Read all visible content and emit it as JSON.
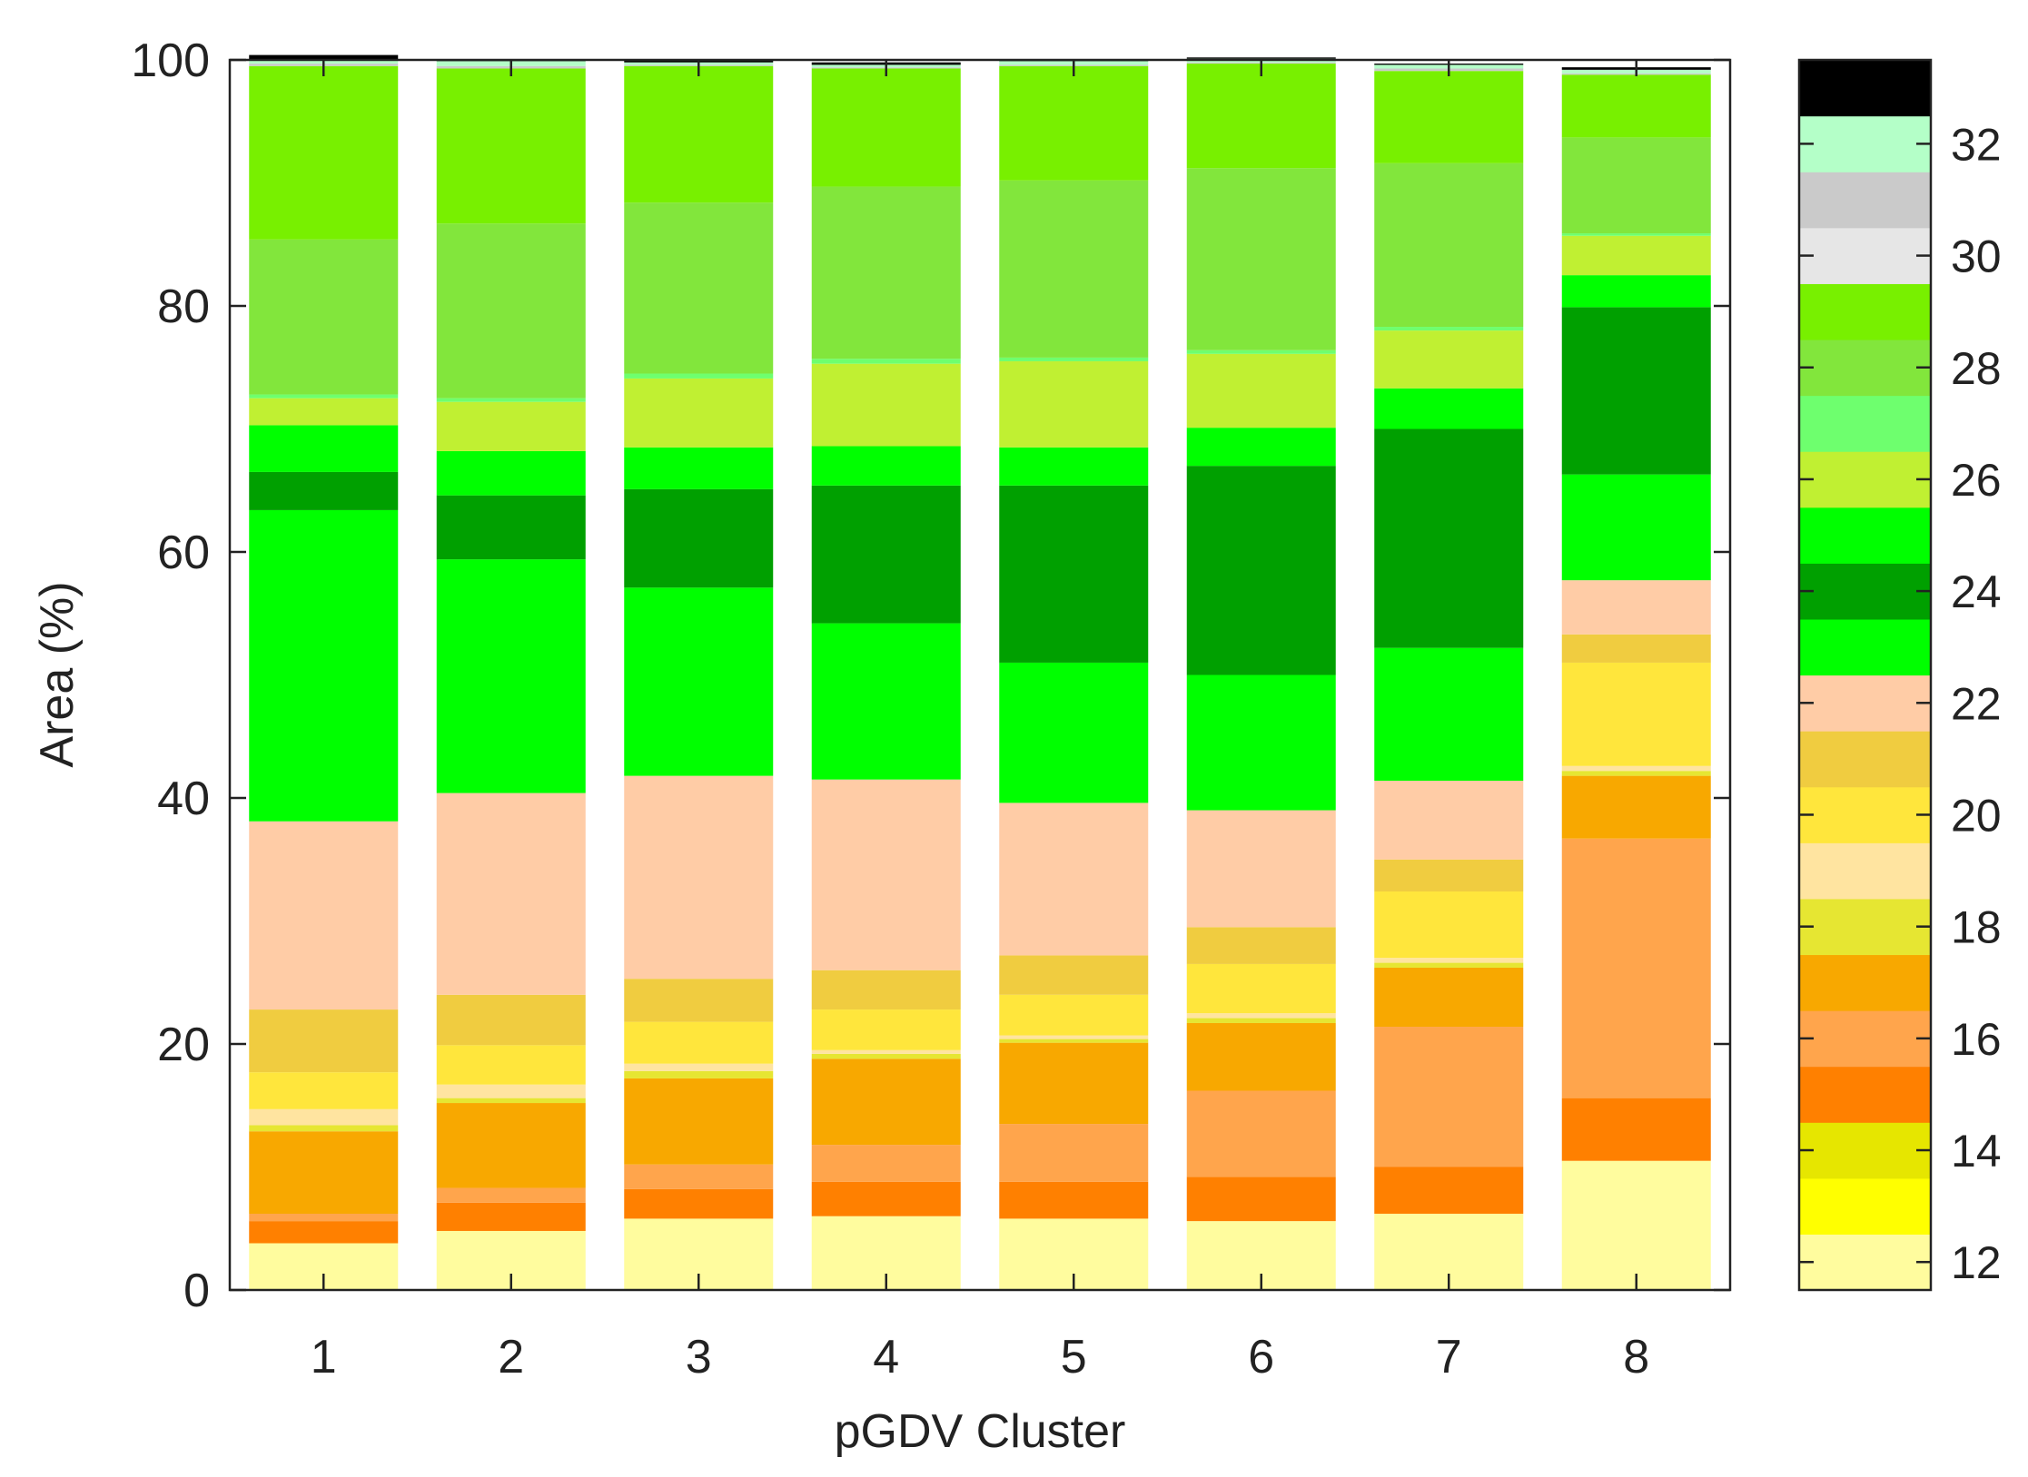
{
  "chart_data": {
    "type": "bar",
    "subtype": "stacked-100",
    "xlabel": "pGDV Cluster",
    "ylabel": "Area (%)",
    "ylim": [
      0,
      100
    ],
    "yticks": [
      0,
      20,
      40,
      60,
      80,
      100
    ],
    "categories": [
      "1",
      "2",
      "3",
      "4",
      "5",
      "6",
      "7",
      "8"
    ],
    "colorbar": {
      "range": [
        11.5,
        33.5
      ],
      "tick_values": [
        12,
        14,
        16,
        18,
        20,
        22,
        24,
        26,
        28,
        30,
        32
      ],
      "tick_labels": [
        "12",
        "14",
        "16",
        "18",
        "20",
        "22",
        "24",
        "26",
        "28",
        "30",
        "32"
      ]
    },
    "series": [
      {
        "name": "12",
        "color": "#fffc9e",
        "values": [
          3.8,
          4.8,
          5.8,
          6.0,
          5.8,
          5.6,
          6.2,
          10.5
        ]
      },
      {
        "name": "13",
        "color": "#ffff00",
        "values": [
          0,
          0,
          0,
          0,
          0,
          0,
          0,
          0
        ]
      },
      {
        "name": "14",
        "color": "#e6e600",
        "values": [
          0,
          0,
          0,
          0,
          0,
          0,
          0,
          0
        ]
      },
      {
        "name": "15",
        "color": "#ff8000",
        "values": [
          1.8,
          2.3,
          2.4,
          2.8,
          3.0,
          3.6,
          3.8,
          5.1
        ]
      },
      {
        "name": "16",
        "color": "#ffa54c",
        "values": [
          0.6,
          1.2,
          2.0,
          3.0,
          4.7,
          7.0,
          11.4,
          21.1
        ]
      },
      {
        "name": "17",
        "color": "#f8a800",
        "values": [
          6.7,
          6.9,
          7.0,
          7.0,
          6.6,
          5.5,
          4.8,
          5.1
        ]
      },
      {
        "name": "18",
        "color": "#e6e632",
        "values": [
          0.5,
          0.4,
          0.6,
          0.4,
          0.3,
          0.4,
          0.4,
          0.4
        ]
      },
      {
        "name": "19",
        "color": "#ffe4a0",
        "values": [
          1.3,
          1.1,
          0.6,
          0.3,
          0.3,
          0.4,
          0.4,
          0.4
        ]
      },
      {
        "name": "20",
        "color": "#ffe63c",
        "values": [
          3.0,
          3.2,
          3.4,
          3.3,
          3.3,
          4.0,
          5.4,
          8.4
        ]
      },
      {
        "name": "21",
        "color": "#f0cc40",
        "values": [
          5.1,
          4.1,
          3.5,
          3.2,
          3.2,
          3.0,
          2.6,
          2.3
        ]
      },
      {
        "name": "22",
        "color": "#ffcca6",
        "values": [
          15.3,
          16.4,
          16.5,
          15.5,
          12.4,
          9.5,
          6.4,
          4.4
        ]
      },
      {
        "name": "23",
        "color": "#00ff00",
        "values": [
          25.3,
          19.0,
          15.3,
          12.7,
          11.4,
          11.0,
          10.8,
          8.6
        ]
      },
      {
        "name": "24",
        "color": "#00a000",
        "values": [
          3.1,
          5.2,
          8.0,
          11.2,
          14.4,
          17.0,
          17.8,
          13.6
        ]
      },
      {
        "name": "25",
        "color": "#00ff00",
        "values": [
          3.8,
          3.6,
          3.4,
          3.2,
          3.1,
          3.1,
          3.3,
          2.6
        ]
      },
      {
        "name": "26",
        "color": "#c0f032",
        "values": [
          2.2,
          4.0,
          5.6,
          6.7,
          7.0,
          6.0,
          4.7,
          3.2
        ]
      },
      {
        "name": "27",
        "color": "#6eff6e",
        "values": [
          0.3,
          0.3,
          0.4,
          0.4,
          0.3,
          0.3,
          0.3,
          0.2
        ]
      },
      {
        "name": "28",
        "color": "#82e63c",
        "values": [
          12.6,
          14.2,
          13.9,
          14.0,
          14.4,
          14.8,
          13.3,
          7.8
        ]
      },
      {
        "name": "29",
        "color": "#78f000",
        "values": [
          14.1,
          12.6,
          11.1,
          9.6,
          9.3,
          8.5,
          7.5,
          5.1
        ]
      },
      {
        "name": "30",
        "color": "#e6e6e6",
        "values": [
          0,
          0,
          0,
          0,
          0,
          0,
          0,
          0
        ]
      },
      {
        "name": "31",
        "color": "#cacaca",
        "values": [
          0.2,
          0.2,
          0.1,
          0.1,
          0.1,
          0.1,
          0.2,
          0.1
        ]
      },
      {
        "name": "32",
        "color": "#b4ffc8",
        "values": [
          0.3,
          0.4,
          0.2,
          0.2,
          0.3,
          0.3,
          0.3,
          0.3
        ]
      },
      {
        "name": "33",
        "color": "#000000",
        "values": [
          0.4,
          0.1,
          0.2,
          0.2,
          0.1,
          0.1,
          0.1,
          0.2
        ]
      }
    ]
  }
}
